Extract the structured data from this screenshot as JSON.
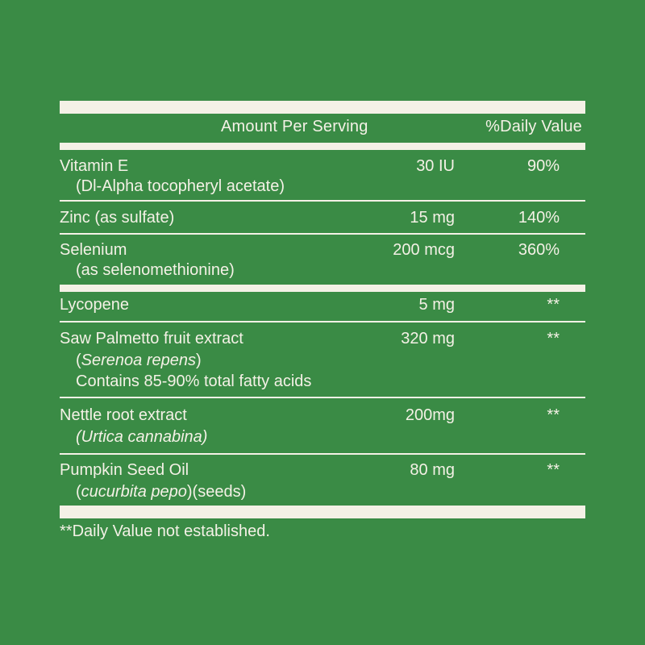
{
  "header": {
    "amount_per_serving": "Amount Per Serving",
    "daily_value": "%Daily Value"
  },
  "nutrients": [
    {
      "name": "Vitamin E",
      "sub": "(Dl-Alpha tocopheryl acetate)",
      "amount": "30 IU",
      "dv": "90%"
    },
    {
      "name": "Zinc (as sulfate)",
      "amount": "15 mg",
      "dv": "140%"
    },
    {
      "name": "Selenium",
      "sub": "(as selenomethionine)",
      "amount": "200 mcg",
      "dv": "360%"
    },
    {
      "name": "Lycopene",
      "amount": "5 mg",
      "dv": "**"
    },
    {
      "name": "Saw Palmetto fruit extract",
      "sub_italic": "Serenoa repens",
      "sub_open": "(",
      "sub_close": ")",
      "sub2": "Contains 85-90% total fatty acids",
      "amount": "320 mg",
      "dv": "**"
    },
    {
      "name": "Nettle root extract",
      "sub_italic": "Urtica cannabina",
      "amount": "200mg",
      "dv": "**"
    },
    {
      "name": "Pumpkin Seed Oil",
      "sub_italic": "cucurbita pepo",
      "sub_rest": ")(seeds)",
      "amount": "80 mg",
      "dv": "**"
    }
  ],
  "footnote": "**Daily Value not established.",
  "colors": {
    "background": "#3a8b45",
    "foreground": "#f4f1e6"
  }
}
